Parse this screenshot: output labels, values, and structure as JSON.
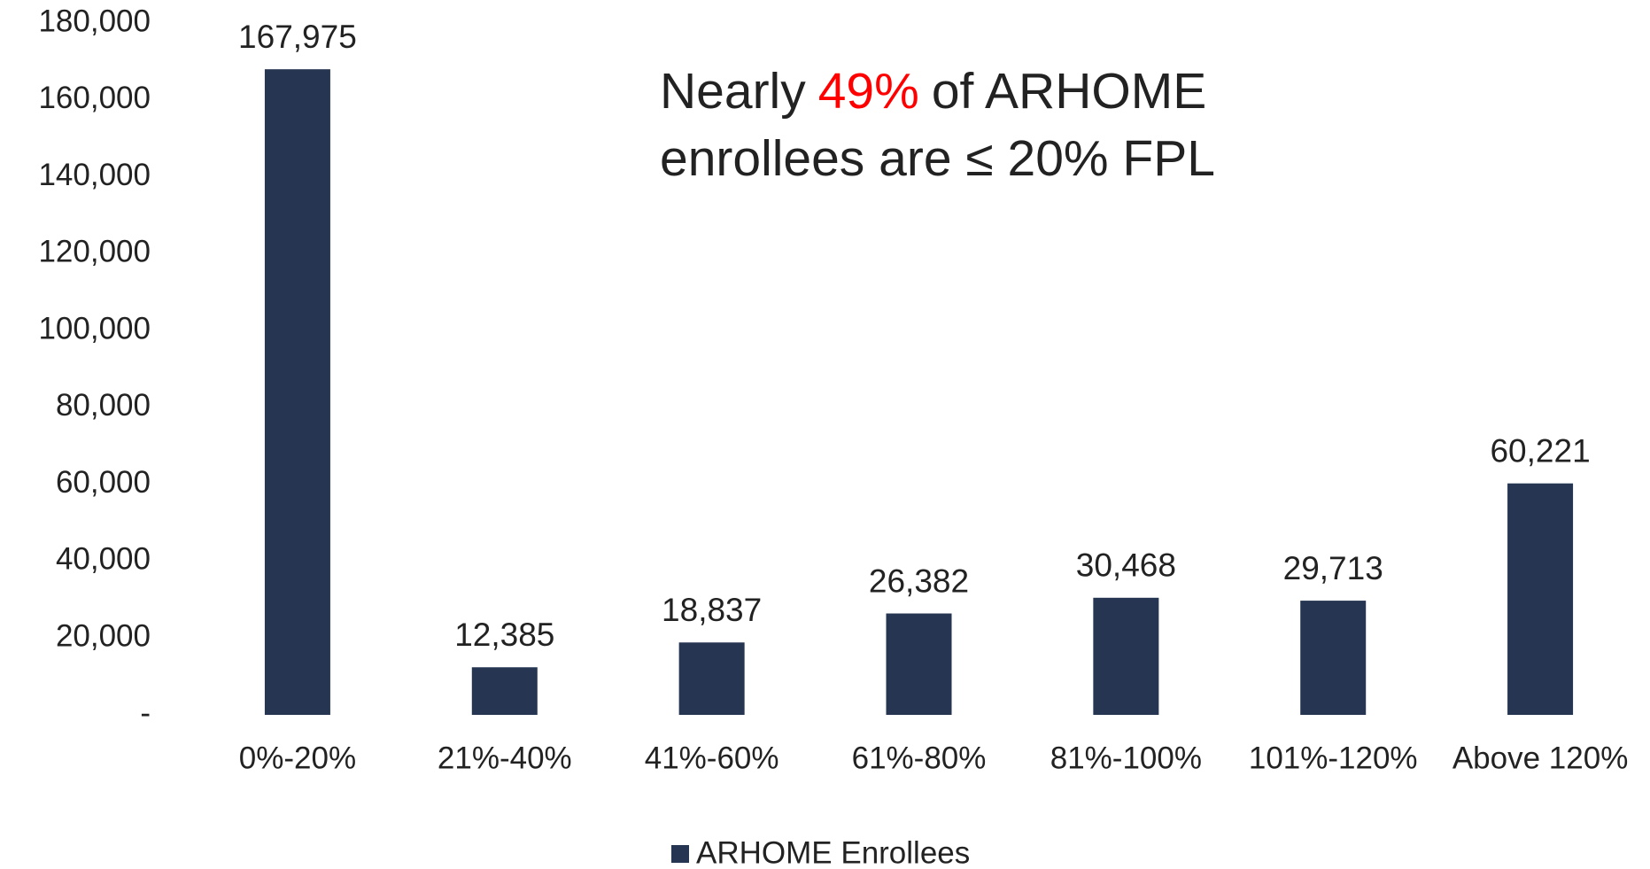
{
  "chart_data": {
    "type": "bar",
    "annotation": {
      "line1": [
        "Nearly",
        "49%",
        "of ARHOME"
      ],
      "line2": "enrollees are ≤ 20% FPL",
      "highlight_color": "#ff0000"
    },
    "categories": [
      "0%-20%",
      "21%-40%",
      "41%-60%",
      "61%-80%",
      "81%-100%",
      "101%-120%",
      "Above 120%"
    ],
    "series": [
      {
        "name": "ARHOME Enrollees",
        "color": "#253552",
        "values": [
          167975,
          12385,
          18837,
          26382,
          30468,
          29713,
          60221
        ],
        "value_labels": [
          "167,975",
          "12,385",
          "18,837",
          "26,382",
          "30,468",
          "29,713",
          "60,221"
        ]
      }
    ],
    "ylim": [
      0,
      180000
    ],
    "yticks": [
      {
        "value": 0,
        "label": "-"
      },
      {
        "value": 20000,
        "label": "20,000"
      },
      {
        "value": 40000,
        "label": "40,000"
      },
      {
        "value": 60000,
        "label": "60,000"
      },
      {
        "value": 80000,
        "label": "80,000"
      },
      {
        "value": 100000,
        "label": "100,000"
      },
      {
        "value": 120000,
        "label": "120,000"
      },
      {
        "value": 140000,
        "label": "140,000"
      },
      {
        "value": 160000,
        "label": "160,000"
      },
      {
        "value": 180000,
        "label": "180,000"
      }
    ],
    "grid": false,
    "legend": "bottom"
  }
}
